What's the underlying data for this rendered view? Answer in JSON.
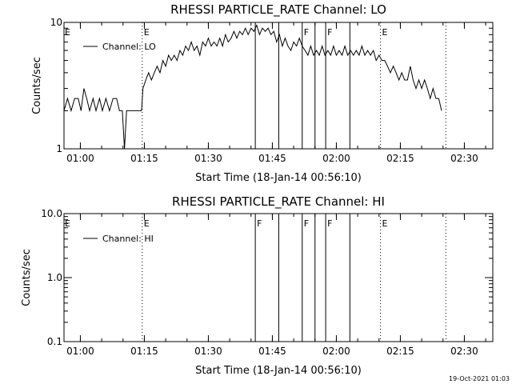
{
  "stamp": "19-Oct-2021 01:03",
  "colors": {
    "background": "#ffffff",
    "ink": "#000000"
  },
  "chart_data": [
    {
      "type": "line",
      "title": "RHESSI PARTICLE_RATE Channel: LO",
      "xlabel": "Start Time (18-Jan-14 00:56:10)",
      "ylabel": "Counts/sec",
      "yscale": "log",
      "ylim": [
        1,
        10
      ],
      "xlim": [
        "00:56:10",
        "02:36:40"
      ],
      "x_ticks": [
        "01:00",
        "01:15",
        "01:30",
        "01:45",
        "02:00",
        "02:15",
        "02:30"
      ],
      "y_ticks": [
        "1",
        "10"
      ],
      "legend": {
        "placement": "top-left",
        "entries": [
          "Channel: LO"
        ]
      },
      "flag_lines": [
        {
          "time": "01:14:30",
          "label": "E",
          "style": "dotted"
        },
        {
          "time": "01:41:00",
          "label": "",
          "style": "solid"
        },
        {
          "time": "01:46:30",
          "label": "",
          "style": "solid"
        },
        {
          "time": "01:52:00",
          "label": "F",
          "style": "solid"
        },
        {
          "time": "01:55:00",
          "label": "",
          "style": "solid"
        },
        {
          "time": "01:57:30",
          "label": "F",
          "style": "solid"
        },
        {
          "time": "02:03:10",
          "label": "",
          "style": "solid"
        },
        {
          "time": "02:10:20",
          "label": "E",
          "style": "dotted"
        },
        {
          "time": "02:25:40",
          "label": "",
          "style": "dotted"
        }
      ],
      "series": [
        {
          "name": "Channel: LO",
          "points": [
            [
              "00:56:10",
              2.0
            ],
            [
              "00:57:00",
              2.5
            ],
            [
              "00:57:50",
              2.0
            ],
            [
              "00:58:40",
              2.5
            ],
            [
              "00:59:30",
              2.5
            ],
            [
              "01:00:10",
              2.0
            ],
            [
              "01:00:50",
              3.0
            ],
            [
              "01:01:30",
              2.5
            ],
            [
              "01:02:10",
              2.0
            ],
            [
              "01:03:00",
              2.5
            ],
            [
              "01:03:40",
              2.0
            ],
            [
              "01:04:30",
              2.5
            ],
            [
              "01:05:10",
              2.0
            ],
            [
              "01:06:00",
              2.5
            ],
            [
              "01:06:50",
              2.0
            ],
            [
              "01:07:40",
              2.5
            ],
            [
              "01:08:30",
              2.5
            ],
            [
              "01:09:10",
              2.0
            ],
            [
              "01:09:50",
              2.0
            ],
            [
              "01:10:20",
              1.0
            ],
            [
              "01:10:50",
              2.0
            ],
            [
              "01:12:00",
              2.0
            ],
            [
              "01:13:30",
              2.0
            ],
            [
              "01:14:20",
              2.0
            ],
            [
              "01:14:40",
              3.0
            ],
            [
              "01:15:20",
              3.5
            ],
            [
              "01:16:00",
              4.0
            ],
            [
              "01:16:40",
              3.5
            ],
            [
              "01:17:20",
              4.0
            ],
            [
              "01:18:00",
              4.5
            ],
            [
              "01:18:40",
              4.0
            ],
            [
              "01:19:20",
              5.0
            ],
            [
              "01:20:00",
              4.5
            ],
            [
              "01:20:40",
              5.5
            ],
            [
              "01:21:20",
              5.0
            ],
            [
              "01:22:00",
              5.5
            ],
            [
              "01:22:40",
              5.0
            ],
            [
              "01:23:20",
              6.0
            ],
            [
              "01:24:00",
              5.5
            ],
            [
              "01:24:40",
              6.5
            ],
            [
              "01:25:20",
              6.0
            ],
            [
              "01:26:00",
              7.0
            ],
            [
              "01:26:40",
              6.0
            ],
            [
              "01:27:20",
              6.5
            ],
            [
              "01:28:00",
              5.5
            ],
            [
              "01:28:40",
              7.0
            ],
            [
              "01:29:20",
              6.5
            ],
            [
              "01:30:00",
              7.5
            ],
            [
              "01:30:40",
              6.5
            ],
            [
              "01:31:20",
              7.0
            ],
            [
              "01:32:00",
              6.5
            ],
            [
              "01:32:40",
              7.5
            ],
            [
              "01:33:20",
              6.5
            ],
            [
              "01:34:00",
              8.0
            ],
            [
              "01:34:40",
              7.0
            ],
            [
              "01:35:20",
              7.5
            ],
            [
              "01:36:00",
              8.5
            ],
            [
              "01:36:40",
              7.5
            ],
            [
              "01:37:20",
              8.5
            ],
            [
              "01:38:00",
              8.0
            ],
            [
              "01:38:40",
              9.0
            ],
            [
              "01:39:20",
              8.0
            ],
            [
              "01:40:00",
              9.0
            ],
            [
              "01:40:40",
              8.5
            ],
            [
              "01:41:20",
              9.5
            ],
            [
              "01:42:00",
              8.0
            ],
            [
              "01:42:40",
              9.0
            ],
            [
              "01:43:20",
              8.5
            ],
            [
              "01:44:00",
              9.0
            ],
            [
              "01:44:40",
              8.0
            ],
            [
              "01:45:20",
              8.5
            ],
            [
              "01:46:00",
              7.0
            ],
            [
              "01:46:40",
              8.0
            ],
            [
              "01:47:20",
              6.5
            ],
            [
              "01:48:00",
              7.5
            ],
            [
              "01:48:40",
              6.5
            ],
            [
              "01:49:20",
              6.0
            ],
            [
              "01:50:00",
              7.0
            ],
            [
              "01:50:40",
              6.5
            ],
            [
              "01:51:20",
              7.5
            ],
            [
              "01:52:00",
              6.5
            ],
            [
              "01:52:40",
              6.0
            ],
            [
              "01:53:20",
              5.5
            ],
            [
              "01:54:00",
              6.5
            ],
            [
              "01:54:40",
              5.5
            ],
            [
              "01:55:20",
              6.0
            ],
            [
              "01:56:00",
              5.5
            ],
            [
              "01:56:40",
              6.5
            ],
            [
              "01:57:20",
              5.5
            ],
            [
              "01:58:00",
              6.0
            ],
            [
              "01:58:40",
              5.5
            ],
            [
              "01:59:20",
              6.5
            ],
            [
              "02:00:00",
              5.5
            ],
            [
              "02:00:40",
              6.0
            ],
            [
              "02:01:20",
              5.5
            ],
            [
              "02:02:00",
              6.5
            ],
            [
              "02:02:40",
              5.5
            ],
            [
              "02:03:20",
              6.0
            ],
            [
              "02:04:00",
              5.5
            ],
            [
              "02:04:40",
              6.0
            ],
            [
              "02:05:20",
              5.5
            ],
            [
              "02:06:00",
              6.5
            ],
            [
              "02:06:40",
              5.5
            ],
            [
              "02:07:20",
              6.0
            ],
            [
              "02:08:00",
              5.5
            ],
            [
              "02:08:40",
              6.0
            ],
            [
              "02:09:20",
              5.0
            ],
            [
              "02:10:00",
              5.5
            ],
            [
              "02:10:40",
              5.0
            ],
            [
              "02:11:20",
              5.0
            ],
            [
              "02:12:00",
              4.5
            ],
            [
              "02:12:40",
              4.0
            ],
            [
              "02:13:20",
              4.5
            ],
            [
              "02:14:00",
              4.0
            ],
            [
              "02:14:40",
              3.5
            ],
            [
              "02:15:20",
              4.0
            ],
            [
              "02:16:00",
              3.5
            ],
            [
              "02:16:40",
              3.5
            ],
            [
              "02:17:20",
              4.5
            ],
            [
              "02:18:00",
              3.5
            ],
            [
              "02:18:40",
              3.0
            ],
            [
              "02:19:20",
              3.5
            ],
            [
              "02:20:00",
              3.0
            ],
            [
              "02:20:40",
              3.5
            ],
            [
              "02:21:20",
              3.0
            ],
            [
              "02:22:00",
              2.5
            ],
            [
              "02:22:40",
              3.0
            ],
            [
              "02:23:20",
              2.5
            ],
            [
              "02:24:00",
              2.5
            ],
            [
              "02:24:40",
              2.0
            ]
          ]
        }
      ]
    },
    {
      "type": "line",
      "title": "RHESSI PARTICLE_RATE Channel: HI",
      "xlabel": "Start Time (18-Jan-14 00:56:10)",
      "ylabel": "Counts/sec",
      "yscale": "log",
      "ylim": [
        0.1,
        10
      ],
      "xlim": [
        "00:56:10",
        "02:36:40"
      ],
      "x_ticks": [
        "01:00",
        "01:15",
        "01:30",
        "01:45",
        "02:00",
        "02:15",
        "02:30"
      ],
      "y_ticks": [
        "0.1",
        "1.0",
        "10.0"
      ],
      "legend": {
        "placement": "top-left",
        "entries": [
          "Channel: HI"
        ]
      },
      "flag_lines": [
        {
          "time": "01:14:30",
          "label": "E",
          "style": "dotted"
        },
        {
          "time": "01:41:00",
          "label": "F",
          "style": "solid"
        },
        {
          "time": "01:46:30",
          "label": "",
          "style": "solid"
        },
        {
          "time": "01:52:00",
          "label": "F",
          "style": "solid"
        },
        {
          "time": "01:55:00",
          "label": "",
          "style": "solid"
        },
        {
          "time": "01:57:30",
          "label": "F",
          "style": "solid"
        },
        {
          "time": "02:03:10",
          "label": "",
          "style": "solid"
        },
        {
          "time": "02:10:20",
          "label": "E",
          "style": "dotted"
        },
        {
          "time": "02:25:40",
          "label": "",
          "style": "dotted"
        }
      ],
      "series": [
        {
          "name": "Channel: HI",
          "points": []
        }
      ]
    }
  ]
}
